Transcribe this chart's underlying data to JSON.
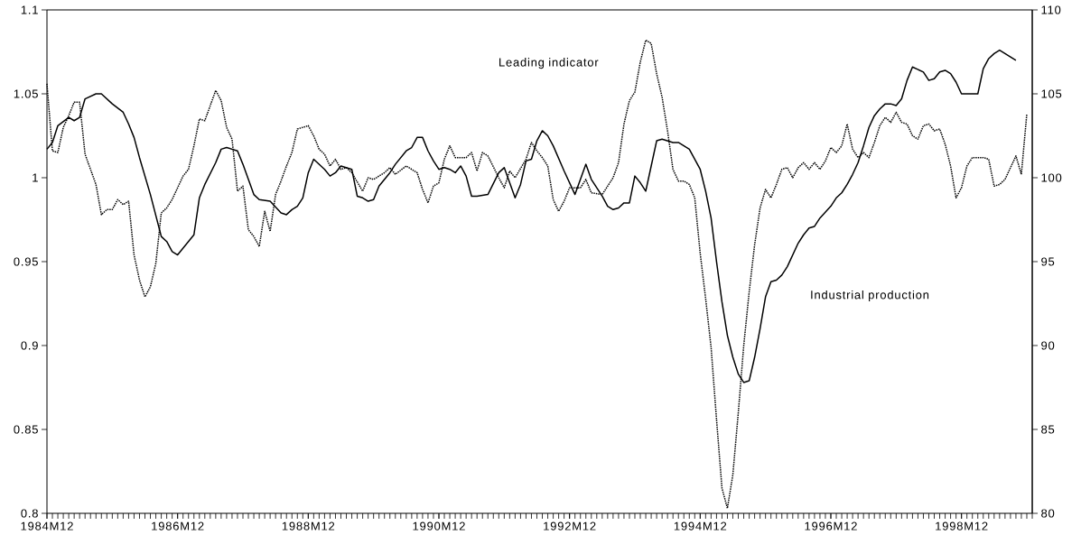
{
  "chart_data": {
    "type": "line",
    "xlim": [
      "1984-12",
      "2000-01"
    ],
    "xticks": [
      {
        "value": "1984-12",
        "label": "1984M12"
      },
      {
        "value": "1986-12",
        "label": "1986M12"
      },
      {
        "value": "1988-12",
        "label": "1988M12"
      },
      {
        "value": "1990-12",
        "label": "1990M12"
      },
      {
        "value": "1992-12",
        "label": "1992M12"
      },
      {
        "value": "1994-12",
        "label": "1994M12"
      },
      {
        "value": "1996-12",
        "label": "1996M12"
      },
      {
        "value": "1998-12",
        "label": "1998M12"
      }
    ],
    "ylim": [
      0.8,
      1.1
    ],
    "yticks": [
      0.8,
      0.85,
      0.9,
      0.95,
      1,
      1.05,
      1.1
    ],
    "y2lim": [
      80,
      110
    ],
    "y2ticks": [
      80,
      85,
      90,
      95,
      100,
      105,
      110
    ],
    "annotations": [
      "Leading indicator",
      "Industrial production"
    ],
    "series": [
      {
        "color": "#000000",
        "line_style": "dotted",
        "x": [
          "1984-12",
          "1985-01",
          "1985-02",
          "1985-03",
          "1985-04",
          "1985-05",
          "1985-06",
          "1985-07",
          "1985-09",
          "1985-10",
          "1985-11",
          "1985-12",
          "1986-01",
          "1986-02",
          "1986-03",
          "1986-04",
          "1986-05",
          "1986-06",
          "1986-07",
          "1986-08",
          "1986-09",
          "1986-10",
          "1986-11",
          "1987-01",
          "1987-02",
          "1987-03",
          "1987-04",
          "1987-05",
          "1987-06",
          "1987-07",
          "1987-08",
          "1987-09",
          "1987-10",
          "1987-11",
          "1987-12",
          "1988-01",
          "1988-02",
          "1988-03",
          "1988-04",
          "1988-05",
          "1988-06",
          "1988-07",
          "1988-08",
          "1988-09",
          "1988-10",
          "1988-12",
          "1989-01",
          "1989-02",
          "1989-03",
          "1989-04",
          "1989-05",
          "1989-06",
          "1989-07",
          "1989-08",
          "1989-10",
          "1989-11",
          "1989-12",
          "1990-02",
          "1990-03",
          "1990-04",
          "1990-06",
          "1990-08",
          "1990-09",
          "1990-10",
          "1990-11",
          "1990-12",
          "1991-01",
          "1991-02",
          "1991-03",
          "1991-05",
          "1991-06",
          "1991-07",
          "1991-08",
          "1991-09",
          "1991-11",
          "1991-12",
          "1992-01",
          "1992-02",
          "1992-04",
          "1992-05",
          "1992-06",
          "1992-07",
          "1992-08",
          "1992-09",
          "1992-10",
          "1992-11",
          "1992-12",
          "1993-02",
          "1993-03",
          "1993-04",
          "1993-06",
          "1993-07",
          "1993-08",
          "1993-09",
          "1993-10",
          "1993-11",
          "1993-12",
          "1994-01",
          "1994-02",
          "1994-03",
          "1994-04",
          "1994-05",
          "1994-06",
          "1994-07",
          "1994-08",
          "1994-09",
          "1994-10",
          "1994-11",
          "1994-12",
          "1995-01",
          "1995-02",
          "1995-03",
          "1995-04",
          "1995-05",
          "1995-06",
          "1995-07",
          "1995-08",
          "1995-09",
          "1995-10",
          "1995-11",
          "1995-12",
          "1996-01",
          "1996-02",
          "1996-03",
          "1996-04",
          "1996-05",
          "1996-06",
          "1996-07",
          "1996-08",
          "1996-09",
          "1996-10",
          "1996-11",
          "1996-12",
          "1997-01",
          "1997-02",
          "1997-03",
          "1997-04",
          "1997-05",
          "1997-06",
          "1997-07",
          "1997-08",
          "1997-09",
          "1997-10",
          "1997-11",
          "1997-12",
          "1998-01",
          "1998-02",
          "1998-03",
          "1998-04",
          "1998-05",
          "1998-06",
          "1998-07",
          "1998-08",
          "1998-09",
          "1998-10",
          "1998-11",
          "1998-12",
          "1999-01",
          "1999-02",
          "1999-04",
          "1999-05",
          "1999-06",
          "1999-07",
          "1999-08",
          "1999-09",
          "1999-10",
          "1999-11",
          "1999-12"
        ],
        "values": [
          1.056,
          1.016,
          1.015,
          1.03,
          1.037,
          1.045,
          1.045,
          1.014,
          0.996,
          0.978,
          0.981,
          0.981,
          0.987,
          0.984,
          0.986,
          0.954,
          0.939,
          0.929,
          0.935,
          0.949,
          0.979,
          0.982,
          0.987,
          1.001,
          1.005,
          1.019,
          1.035,
          1.034,
          1.043,
          1.052,
          1.046,
          1.03,
          1.023,
          0.992,
          0.995,
          0.969,
          0.965,
          0.959,
          0.98,
          0.968,
          0.99,
          0.998,
          1.007,
          1.015,
          1.029,
          1.031,
          1.025,
          1.017,
          1.014,
          1.007,
          1.011,
          1.005,
          1.006,
          1.003,
          0.992,
          1.0,
          0.999,
          1.003,
          1.006,
          1.002,
          1.007,
          1.003,
          0.993,
          0.985,
          0.995,
          0.997,
          1.011,
          1.019,
          1.012,
          1.012,
          1.015,
          1.004,
          1.015,
          1.013,
          1.0,
          0.994,
          1.004,
          1.0,
          1.011,
          1.021,
          1.016,
          1.012,
          1.007,
          0.987,
          0.98,
          0.986,
          0.994,
          0.994,
          0.999,
          0.991,
          0.99,
          0.995,
          1.0,
          1.009,
          1.032,
          1.046,
          1.051,
          1.069,
          1.082,
          1.08,
          1.062,
          1.048,
          1.028,
          1.005,
          0.998,
          0.998,
          0.996,
          0.988,
          0.955,
          0.928,
          0.899,
          0.856,
          0.815,
          0.803,
          0.823,
          0.86,
          0.9,
          0.932,
          0.96,
          0.982,
          0.993,
          0.988,
          0.996,
          1.005,
          1.006,
          1.0,
          1.006,
          1.009,
          1.005,
          1.009,
          1.005,
          1.01,
          1.018,
          1.015,
          1.019,
          1.032,
          1.017,
          1.012,
          1.015,
          1.012,
          1.021,
          1.031,
          1.036,
          1.033,
          1.039,
          1.033,
          1.032,
          1.025,
          1.023,
          1.031,
          1.032,
          1.028,
          1.029,
          1.02,
          1.007,
          0.988,
          0.994,
          1.007,
          1.012,
          1.012,
          1.011,
          0.995,
          0.996,
          0.999,
          1.006,
          1.013,
          1.002,
          1.038
        ]
      },
      {
        "color": "#000000",
        "line_style": "solid",
        "axis": "y2",
        "x": [
          "1984-12",
          "1985-01",
          "1985-02",
          "1985-04",
          "1985-05",
          "1985-06",
          "1985-07",
          "1985-09",
          "1985-10",
          "1985-12",
          "1986-02",
          "1986-03",
          "1986-04",
          "1986-05",
          "1986-07",
          "1986-09",
          "1986-10",
          "1986-11",
          "1986-12",
          "1987-03",
          "1987-04",
          "1987-05",
          "1987-07",
          "1987-08",
          "1987-09",
          "1987-10",
          "1987-11",
          "1987-12",
          "1988-01",
          "1988-02",
          "1988-03",
          "1988-05",
          "1988-07",
          "1988-08",
          "1988-09",
          "1988-10",
          "1988-11",
          "1988-12",
          "1989-01",
          "1989-03",
          "1989-04",
          "1989-05",
          "1989-06",
          "1989-08",
          "1989-09",
          "1989-10",
          "1989-11",
          "1989-12",
          "1990-01",
          "1990-03",
          "1990-04",
          "1990-06",
          "1990-07",
          "1990-08",
          "1990-09",
          "1990-10",
          "1990-11",
          "1990-12",
          "1991-01",
          "1991-02",
          "1991-03",
          "1991-04",
          "1991-05",
          "1991-06",
          "1991-07",
          "1991-09",
          "1991-11",
          "1991-12",
          "1992-02",
          "1992-03",
          "1992-04",
          "1992-05",
          "1992-06",
          "1992-07",
          "1992-08",
          "1992-09",
          "1992-11",
          "1993-01",
          "1993-03",
          "1993-04",
          "1993-06",
          "1993-07",
          "1993-08",
          "1993-09",
          "1993-10",
          "1993-11",
          "1993-12",
          "1994-01",
          "1994-02",
          "1994-03",
          "1994-04",
          "1994-05",
          "1994-07",
          "1994-08",
          "1994-10",
          "1994-11",
          "1994-12",
          "1995-01",
          "1995-02",
          "1995-03",
          "1995-04",
          "1995-05",
          "1995-06",
          "1995-07",
          "1995-08",
          "1995-09",
          "1995-10",
          "1995-11",
          "1995-12",
          "1996-01",
          "1996-02",
          "1996-03",
          "1996-04",
          "1996-05",
          "1996-06",
          "1996-07",
          "1996-08",
          "1996-09",
          "1996-10",
          "1996-12",
          "1997-01",
          "1997-02",
          "1997-03",
          "1997-04",
          "1997-05",
          "1997-06",
          "1997-07",
          "1997-08",
          "1997-09",
          "1997-10",
          "1997-11",
          "1997-12",
          "1998-01",
          "1998-02",
          "1998-03",
          "1998-05",
          "1998-06",
          "1998-07",
          "1998-08",
          "1998-09",
          "1998-10",
          "1998-11",
          "1998-12",
          "1999-01",
          "1999-03",
          "1999-04",
          "1999-05",
          "1999-06",
          "1999-07",
          "1999-08",
          "1999-09",
          "1999-10"
        ],
        "values": [
          101.7,
          102.1,
          103.1,
          103.6,
          103.4,
          103.6,
          104.7,
          105.0,
          105.0,
          104.4,
          103.9,
          103.2,
          102.4,
          101.2,
          99.0,
          96.5,
          96.2,
          95.6,
          95.4,
          96.6,
          98.8,
          99.6,
          100.9,
          101.7,
          101.8,
          101.7,
          101.6,
          100.8,
          99.9,
          99.0,
          98.7,
          98.6,
          97.9,
          97.8,
          98.1,
          98.3,
          98.8,
          100.3,
          101.1,
          100.5,
          100.1,
          100.3,
          100.7,
          100.5,
          98.9,
          98.8,
          98.6,
          98.7,
          99.5,
          100.3,
          100.8,
          101.6,
          101.8,
          102.4,
          102.4,
          101.6,
          101.0,
          100.5,
          100.6,
          100.5,
          100.3,
          100.7,
          100.1,
          98.9,
          98.9,
          99.0,
          100.3,
          100.6,
          98.8,
          99.6,
          101.0,
          101.1,
          102.2,
          102.8,
          102.5,
          101.9,
          100.4,
          99.0,
          100.8,
          99.9,
          98.9,
          98.3,
          98.1,
          98.2,
          98.5,
          98.5,
          100.1,
          99.7,
          99.2,
          100.7,
          102.2,
          102.3,
          102.1,
          102.1,
          101.7,
          101.1,
          100.5,
          99.2,
          97.6,
          95.0,
          92.6,
          90.6,
          89.3,
          88.3,
          87.8,
          87.9,
          89.3,
          91.0,
          92.9,
          93.8,
          93.9,
          94.2,
          94.7,
          95.4,
          96.1,
          96.6,
          97.0,
          97.1,
          97.6,
          98.3,
          98.8,
          99.1,
          99.6,
          100.2,
          100.9,
          101.9,
          103.0,
          103.7,
          104.1,
          104.4,
          104.4,
          104.3,
          104.7,
          105.8,
          106.6,
          106.3,
          105.8,
          105.9,
          106.3,
          106.4,
          106.2,
          105.7,
          105.0,
          105.0,
          105.0,
          106.5,
          107.1,
          107.4,
          107.6,
          107.4,
          107.2,
          107.0
        ]
      }
    ]
  }
}
